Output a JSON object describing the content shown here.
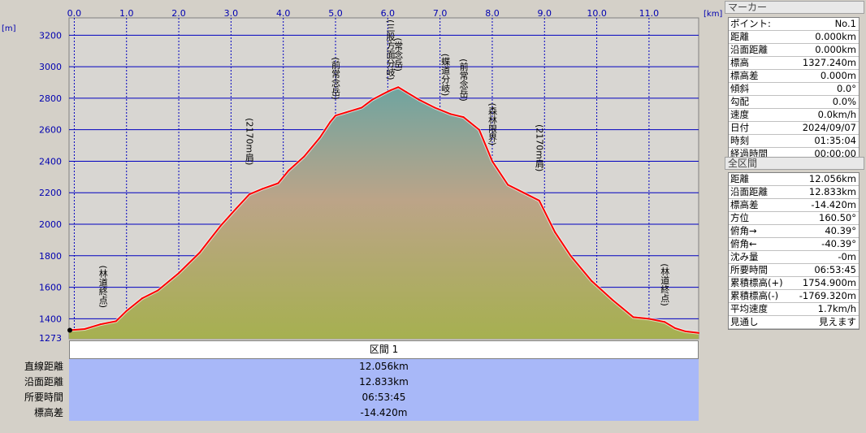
{
  "chart_data": {
    "type": "area",
    "x_unit": "[km]",
    "y_unit": "[m]",
    "x_ticks": [
      "0.0",
      "1.0",
      "2.0",
      "3.0",
      "4.0",
      "5.0",
      "6.0",
      "7.0",
      "8.0",
      "9.0",
      "10.0",
      "11.0"
    ],
    "y_ticks": [
      "1273",
      "1400",
      "1600",
      "1800",
      "2000",
      "2200",
      "2400",
      "2600",
      "2800",
      "3000",
      "3200"
    ],
    "xlim": [
      -0.1,
      11.95
    ],
    "ylim": [
      1273,
      3310
    ],
    "grid": true,
    "x": [
      -0.1,
      0.2,
      0.5,
      0.8,
      1.0,
      1.3,
      1.6,
      2.0,
      2.4,
      2.8,
      3.1,
      3.35,
      3.6,
      3.9,
      4.1,
      4.4,
      4.7,
      4.9,
      5.0,
      5.2,
      5.5,
      5.7,
      5.9,
      6.05,
      6.2,
      6.35,
      6.6,
      6.9,
      7.2,
      7.45,
      7.75,
      8.0,
      8.3,
      8.6,
      8.9,
      9.2,
      9.5,
      9.9,
      10.3,
      10.7,
      11.0,
      11.3,
      11.5,
      11.7,
      11.95
    ],
    "values": [
      1327,
      1335,
      1365,
      1385,
      1450,
      1530,
      1580,
      1690,
      1820,
      1990,
      2100,
      2190,
      2225,
      2260,
      2340,
      2430,
      2550,
      2650,
      2690,
      2710,
      2740,
      2790,
      2825,
      2850,
      2870,
      2840,
      2790,
      2740,
      2700,
      2680,
      2600,
      2400,
      2250,
      2200,
      2150,
      1950,
      1800,
      1640,
      1520,
      1410,
      1400,
      1380,
      1340,
      1320,
      1310
    ],
    "annotations": [
      {
        "x": 0.55,
        "text": "(林道終点)"
      },
      {
        "x": 3.35,
        "text": "(2170m肩)"
      },
      {
        "x": 5.0,
        "text": "(前常念岳)"
      },
      {
        "x": 6.05,
        "text": "(三股方面分岐)"
      },
      {
        "x": 6.2,
        "text": "(常念岳)"
      },
      {
        "x": 7.1,
        "text": "(蝶道分岐)"
      },
      {
        "x": 7.45,
        "text": "(前常念岳)"
      },
      {
        "x": 8.0,
        "text": "(森林限界)"
      },
      {
        "x": 8.9,
        "text": "(2170m肩)"
      },
      {
        "x": 11.3,
        "text": "(林道終点)"
      }
    ],
    "colors": {
      "line": "#ff0000",
      "grid": "#0000c0",
      "fill_top": "#7aa8a0",
      "fill_mid": "#c0a080",
      "fill_bottom": "#a8b050",
      "plot_bg": "#d4d0c8"
    }
  },
  "section": {
    "header": "区間 1",
    "rows": [
      {
        "label": "直線距離",
        "value": "12.056km"
      },
      {
        "label": "沿面距離",
        "value": "12.833km"
      },
      {
        "label": "所要時間",
        "value": "06:53:45"
      },
      {
        "label": "標高差",
        "value": "-14.420m"
      }
    ]
  },
  "marker_panel": {
    "title": "マーカー",
    "rows": [
      {
        "k": "ポイント:",
        "v": "No.1"
      },
      {
        "k": "距離",
        "v": "0.000km"
      },
      {
        "k": "沿面距離",
        "v": "0.000km"
      },
      {
        "k": "標高",
        "v": "1327.240m"
      },
      {
        "k": "標高差",
        "v": "0.000m"
      },
      {
        "k": "傾斜",
        "v": "0.0°"
      },
      {
        "k": "勾配",
        "v": "0.0%"
      },
      {
        "k": "速度",
        "v": "0.0km/h"
      },
      {
        "k": "日付",
        "v": "2024/09/07"
      },
      {
        "k": "時刻",
        "v": "01:35:04"
      },
      {
        "k": "経過時間",
        "v": "00:00:00"
      }
    ]
  },
  "total_panel": {
    "title": "全区間",
    "rows": [
      {
        "k": "距離",
        "v": "12.056km"
      },
      {
        "k": "沿面距離",
        "v": "12.833km"
      },
      {
        "k": "標高差",
        "v": "-14.420m"
      },
      {
        "k": "方位",
        "v": "160.50°"
      },
      {
        "k": "俯角→",
        "v": "40.39°"
      },
      {
        "k": "俯角←",
        "v": "-40.39°"
      },
      {
        "k": "沈み量",
        "v": "-0m"
      },
      {
        "k": "所要時間",
        "v": "06:53:45"
      },
      {
        "k": "累積標高(+)",
        "v": "1754.900m"
      },
      {
        "k": "累積標高(-)",
        "v": "-1769.320m"
      },
      {
        "k": "平均速度",
        "v": "1.7km/h"
      },
      {
        "k": "見通し",
        "v": "見えます"
      }
    ]
  }
}
